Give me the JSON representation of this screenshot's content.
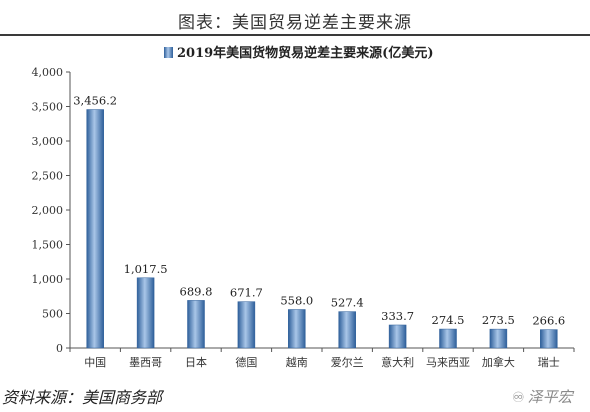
{
  "figure": {
    "title": "图表：美国贸易逆差主要来源",
    "source": "资料来源：美国商务部",
    "watermark": "泽平宏"
  },
  "chart_data": {
    "type": "bar",
    "legend": "2019年美国货物贸易逆差主要来源(亿美元)",
    "legend_position": "top",
    "categories": [
      "中国",
      "墨西哥",
      "日本",
      "德国",
      "越南",
      "爱尔兰",
      "意大利",
      "马来西亚",
      "加拿大",
      "瑞士"
    ],
    "values": [
      3456.2,
      1017.5,
      689.8,
      671.7,
      558.0,
      527.4,
      333.7,
      274.5,
      273.5,
      266.6
    ],
    "data_labels": [
      "3,456.2",
      "1,017.5",
      "689.8",
      "671.7",
      "558.0",
      "527.4",
      "333.7",
      "274.5",
      "273.5",
      "266.6"
    ],
    "yticks": [
      0,
      500,
      1000,
      1500,
      2000,
      2500,
      3000,
      3500,
      4000
    ],
    "ytick_labels": [
      "0",
      "500",
      "1,000",
      "1,500",
      "2,000",
      "2,500",
      "3,000",
      "3,500",
      "4,000"
    ],
    "ylim": [
      0,
      4000
    ],
    "grid": false,
    "bar_color": "#4f81bd"
  }
}
